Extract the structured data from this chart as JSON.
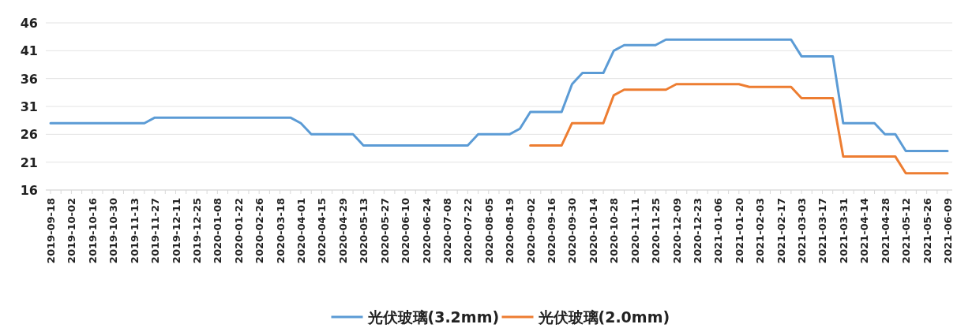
{
  "chart_data": {
    "type": "line",
    "categories": [
      "2019-09-18",
      null,
      "2019-10-02",
      null,
      "2019-10-16",
      null,
      "2019-10-30",
      null,
      "2019-11-13",
      null,
      "2019-11-27",
      null,
      "2019-12-11",
      null,
      "2019-12-25",
      null,
      "2020-01-08",
      null,
      "2020-01-22",
      null,
      "2020-02-26",
      null,
      "2020-03-18",
      null,
      "2020-04-01",
      null,
      "2020-04-15",
      null,
      "2020-04-29",
      null,
      "2020-05-13",
      null,
      "2020-05-27",
      null,
      "2020-06-10",
      null,
      "2020-06-24",
      null,
      "2020-07-08",
      null,
      "2020-07-22",
      null,
      "2020-08-05",
      null,
      "2020-08-19",
      null,
      "2020-09-02",
      null,
      "2020-09-16",
      null,
      "2020-09-30",
      null,
      "2020-10-14",
      null,
      "2020-10-28",
      null,
      "2020-11-11",
      null,
      "2020-11-25",
      null,
      "2020-12-09",
      null,
      "2020-12-23",
      null,
      "2021-01-06",
      null,
      "2021-01-20",
      null,
      "2021-02-03",
      null,
      "2021-02-17",
      null,
      "2021-03-03",
      null,
      "2021-03-17",
      null,
      "2021-03-31",
      null,
      "2021-04-14",
      null,
      "2021-04-28",
      null,
      "2021-05-12",
      null,
      "2021-05-26",
      null,
      "2021-06-09"
    ],
    "series": [
      {
        "name": "光伏玻璃(3.2mm)",
        "color": "#5b9bd5",
        "values": [
          28,
          28,
          28,
          28,
          28,
          28,
          28,
          28,
          28,
          28,
          29,
          29,
          29,
          29,
          29,
          29,
          29,
          29,
          29,
          29,
          29,
          29,
          29,
          29,
          28,
          26,
          26,
          26,
          26,
          26,
          24,
          24,
          24,
          24,
          24,
          24,
          24,
          24,
          24,
          24,
          24,
          26,
          26,
          26,
          26,
          27,
          30,
          30,
          30,
          30,
          35,
          37,
          37,
          37,
          41,
          42,
          42,
          42,
          42,
          43,
          43,
          43,
          43,
          43,
          43,
          43,
          43,
          43,
          43,
          43,
          43,
          43,
          40,
          40,
          40,
          40,
          28,
          28,
          28,
          28,
          26,
          26,
          23,
          23,
          23,
          23,
          23
        ]
      },
      {
        "name": "光伏玻璃(2.0mm)",
        "color": "#ed7d31",
        "values": [
          null,
          null,
          null,
          null,
          null,
          null,
          null,
          null,
          null,
          null,
          null,
          null,
          null,
          null,
          null,
          null,
          null,
          null,
          null,
          null,
          null,
          null,
          null,
          null,
          null,
          null,
          null,
          null,
          null,
          null,
          null,
          null,
          null,
          null,
          null,
          null,
          null,
          null,
          null,
          null,
          null,
          null,
          null,
          null,
          null,
          null,
          24,
          24,
          24,
          24,
          28,
          28,
          28,
          28,
          33,
          34,
          34,
          34,
          34,
          34,
          35,
          35,
          35,
          35,
          35,
          35,
          35,
          34.5,
          34.5,
          34.5,
          34.5,
          34.5,
          32.5,
          32.5,
          32.5,
          32.5,
          22,
          22,
          22,
          22,
          22,
          22,
          19,
          19,
          19,
          19,
          19
        ]
      }
    ],
    "ylim": [
      16,
      46
    ],
    "yticks": [
      16,
      21,
      26,
      31,
      36,
      41,
      46
    ],
    "grid": "y",
    "legend": "bottom"
  }
}
